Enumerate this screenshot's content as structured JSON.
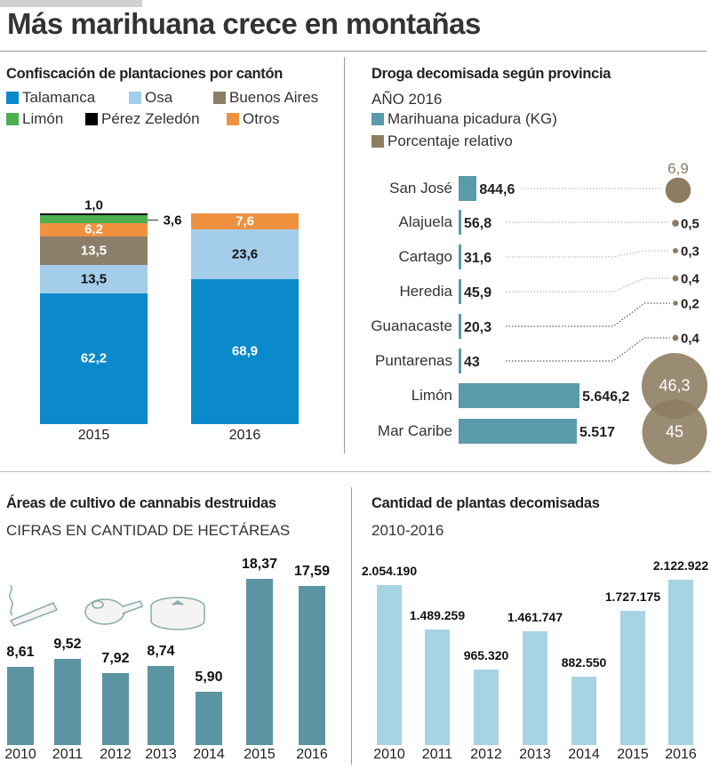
{
  "title": "Más marihuana crece en montañas",
  "colors": {
    "talamanca": "#0b8acb",
    "osa": "#a4cdea",
    "buenos_aires": "#8b7f6a",
    "limon": "#4caf50",
    "perez_zeledon": "#000000",
    "otros": "#f0913f",
    "droga_bar": "#5b9aaa",
    "porcentaje": "#8c7c60",
    "areas_bar": "#5b95a3",
    "plantas_bar": "#a8d3e3"
  },
  "chart_data": [
    {
      "type": "bar",
      "stacked": true,
      "title": "Confiscación de plantaciones por cantón",
      "categories": [
        "2015",
        "2016"
      ],
      "series": [
        {
          "name": "Talamanca",
          "values": [
            62.2,
            68.9
          ],
          "labels": [
            "62,2",
            "68,9"
          ]
        },
        {
          "name": "Osa",
          "values": [
            13.5,
            23.6
          ],
          "labels": [
            "13,5",
            "23,6"
          ]
        },
        {
          "name": "Buenos Aires",
          "values": [
            13.5,
            0
          ],
          "labels": [
            "13,5",
            ""
          ]
        },
        {
          "name": "Otros",
          "values": [
            6.2,
            7.6
          ],
          "labels": [
            "6,2",
            "7,6"
          ]
        },
        {
          "name": "Limón",
          "values": [
            3.6,
            0
          ],
          "labels": [
            "3,6",
            ""
          ]
        },
        {
          "name": "Pérez Zeledón",
          "values": [
            1.0,
            0
          ],
          "labels": [
            "1,0",
            ""
          ]
        }
      ],
      "legend_order": [
        "Talamanca",
        "Osa",
        "Buenos Aires",
        "Limón",
        "Pérez Zeledón",
        "Otros"
      ],
      "legend": "top"
    },
    {
      "type": "bar",
      "orientation": "horizontal",
      "title": "Droga decomisada según provincia",
      "subtitle": "AÑO 2016",
      "categories": [
        "San José",
        "Alajuela",
        "Cartago",
        "Heredia",
        "Guanacaste",
        "Puntarenas",
        "Limón",
        "Mar Caribe"
      ],
      "series": [
        {
          "name": "Marihuana picadura (KG)",
          "values": [
            844.6,
            56.8,
            31.6,
            45.9,
            20.3,
            43,
            5646.2,
            5517
          ],
          "labels": [
            "844,6",
            "56,8",
            "31,6",
            "45,9",
            "20,3",
            "43",
            "5.646,2",
            "5.517"
          ]
        },
        {
          "name": "Porcentaje relativo",
          "values": [
            6.9,
            0.5,
            0.3,
            0.4,
            0.2,
            0.4,
            46.3,
            45
          ],
          "labels": [
            "6,9",
            "0,5",
            "0,3",
            "0,4",
            "0,2",
            "0,4",
            "46,3",
            "45"
          ],
          "mark": "bubble"
        }
      ],
      "legend": "top-left"
    },
    {
      "type": "bar",
      "title": "Áreas de cultivo de cannabis destruidas",
      "subtitle": "CIFRAS EN CANTIDAD DE HECTÁREAS",
      "categories": [
        "2010",
        "2011",
        "2012",
        "2013",
        "2014",
        "2015",
        "2016"
      ],
      "values": [
        8.61,
        9.52,
        7.92,
        8.74,
        5.9,
        18.37,
        17.59
      ],
      "labels": [
        "8,61",
        "9,52",
        "7,92",
        "8,74",
        "5,90",
        "18,37",
        "17,59"
      ],
      "icons": [
        "joint-icon",
        "pipe-icon",
        "grinder-icon"
      ]
    },
    {
      "type": "bar",
      "title": "Cantidad de plantas decomisadas",
      "subtitle": "2010-2016",
      "categories": [
        "2010",
        "2011",
        "2012",
        "2013",
        "2014",
        "2015",
        "2016"
      ],
      "values": [
        2054190,
        1489259,
        965320,
        1461747,
        882550,
        1727175,
        2122922
      ],
      "labels": [
        "2.054.190",
        "1.489.259",
        "965.320",
        "1.461.747",
        "882.550",
        "1.727.175",
        "2.122.922"
      ]
    }
  ]
}
